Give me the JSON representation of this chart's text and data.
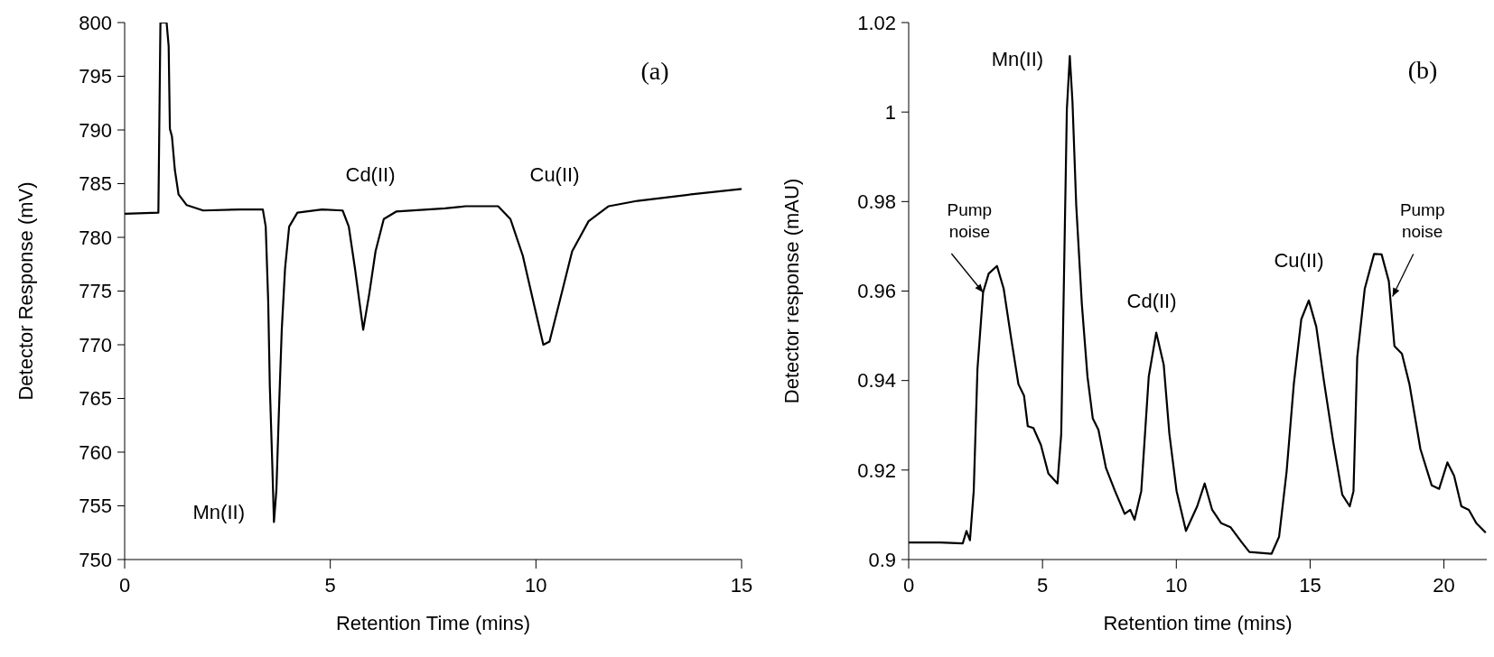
{
  "chart_data": [
    {
      "type": "line",
      "xlabel": "Retention Time (mins)",
      "ylabel": "Detector Response (mV)",
      "xlim": [
        0,
        15
      ],
      "xticks": [
        0,
        5,
        10,
        15
      ],
      "ylim": [
        750,
        800
      ],
      "yticks": [
        750,
        755,
        760,
        765,
        770,
        775,
        780,
        785,
        790,
        795,
        800
      ],
      "grid": false,
      "legend": false,
      "marker": "none",
      "line_style": "solid",
      "annotations": [
        "(a)",
        {
          "text": "Mn(II)",
          "x": 3.63,
          "y": 753.5
        },
        "Cd(II)",
        "Cu(II)"
      ],
      "series": [
        {
          "color": "#000000",
          "x": [
            0,
            0.82,
            0.87,
            1.02,
            1.07,
            1.1,
            1.15,
            1.22,
            1.31,
            1.51,
            1.91,
            2.81,
            3.36,
            3.43,
            3.49,
            3.53,
            3.59,
            3.63,
            3.69,
            3.75,
            3.82,
            3.9,
            4.0,
            4.2,
            4.8,
            5.3,
            5.45,
            5.6,
            5.8,
            5.95,
            6.1,
            6.3,
            6.6,
            7.79,
            8.29,
            9.08,
            9.38,
            9.68,
            9.98,
            10.18,
            10.33,
            10.58,
            10.88,
            11.28,
            11.77,
            12.47,
            13.77,
            15
          ],
          "values": [
            782.2,
            782.3,
            800,
            800,
            797.8,
            790.1,
            789.4,
            786.3,
            784.0,
            783.0,
            782.5,
            782.6,
            782.6,
            781.0,
            774.1,
            766.1,
            758.8,
            753.5,
            756.5,
            763.7,
            771.4,
            777.1,
            781.0,
            782.3,
            782.6,
            782.5,
            781.0,
            777.1,
            771.4,
            774.8,
            778.7,
            781.7,
            782.4,
            782.7,
            782.9,
            782.9,
            781.7,
            778.3,
            773.3,
            770.0,
            770.3,
            774.1,
            778.7,
            781.5,
            782.9,
            783.4,
            784.0,
            784.5
          ]
        }
      ]
    },
    {
      "type": "line",
      "xlabel": "Retention time (mins)",
      "ylabel": "Detector response (mAU)",
      "xlim": [
        0,
        21.6
      ],
      "xticks": [
        0,
        5,
        10,
        15,
        20
      ],
      "ylim": [
        0.9,
        1.02
      ],
      "yticks": [
        0.9,
        0.92,
        0.94,
        0.96,
        0.98,
        1,
        1.02
      ],
      "grid": false,
      "legend": false,
      "marker": "none",
      "line_style": "solid",
      "annotations": [
        "(b)",
        {
          "text": "Mn(II)",
          "x": 6.02,
          "y": 1.0125
        },
        {
          "text": "Cd(II)",
          "x": 9.25,
          "y": 0.9507
        },
        {
          "text": "Cu(II)",
          "x": 14.95,
          "y": 0.9579
        },
        {
          "text": "Pump noise",
          "x": 2.78,
          "y": 0.9597
        },
        {
          "text": "Pump noise",
          "x": 18.08,
          "y": 0.9588
        }
      ],
      "series": [
        {
          "color": "#000000",
          "x": [
            0,
            1.18,
            2.02,
            2.16,
            2.29,
            2.43,
            2.57,
            2.78,
            2.99,
            3.3,
            3.55,
            3.83,
            4.1,
            4.31,
            4.45,
            4.66,
            4.94,
            5.22,
            5.56,
            5.7,
            5.8,
            5.91,
            6.02,
            6.12,
            6.26,
            6.47,
            6.68,
            6.88,
            7.09,
            7.37,
            7.71,
            8.07,
            8.28,
            8.44,
            8.69,
            8.97,
            9.25,
            9.53,
            9.74,
            10.01,
            10.36,
            10.78,
            11.06,
            11.34,
            11.68,
            12.03,
            12.45,
            12.73,
            13.56,
            13.84,
            14.12,
            14.39,
            14.67,
            14.95,
            15.23,
            15.51,
            15.86,
            16.2,
            16.48,
            16.62,
            16.76,
            17.04,
            17.39,
            17.67,
            17.94,
            18.15,
            18.43,
            18.71,
            19.12,
            19.54,
            19.82,
            20.13,
            20.38,
            20.65,
            20.93,
            21.21,
            21.56
          ],
          "values": [
            0.9038,
            0.9038,
            0.9036,
            0.9064,
            0.9043,
            0.9153,
            0.9426,
            0.9597,
            0.9639,
            0.9656,
            0.9605,
            0.9494,
            0.9392,
            0.9366,
            0.9298,
            0.9294,
            0.9256,
            0.9192,
            0.917,
            0.9281,
            0.9622,
            1.0006,
            1.0125,
            1.0023,
            0.9792,
            0.9571,
            0.9409,
            0.9315,
            0.929,
            0.9205,
            0.9153,
            0.9102,
            0.9111,
            0.9089,
            0.9153,
            0.9409,
            0.9507,
            0.9435,
            0.9281,
            0.9153,
            0.9064,
            0.9119,
            0.917,
            0.9111,
            0.9081,
            0.9072,
            0.9038,
            0.9017,
            0.9013,
            0.9051,
            0.9196,
            0.9392,
            0.9537,
            0.9579,
            0.952,
            0.9401,
            0.9264,
            0.9145,
            0.9119,
            0.9153,
            0.9452,
            0.9605,
            0.9683,
            0.9682,
            0.9622,
            0.9477,
            0.946,
            0.9392,
            0.9247,
            0.9166,
            0.9158,
            0.9217,
            0.9187,
            0.9119,
            0.9111,
            0.9081,
            0.906
          ]
        }
      ]
    }
  ]
}
